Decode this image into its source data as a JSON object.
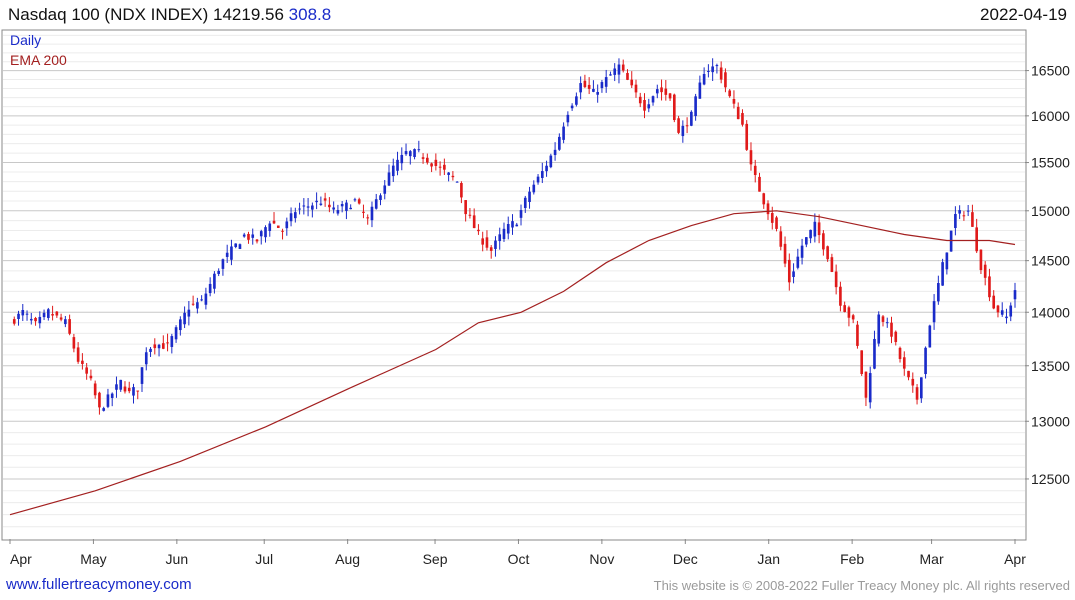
{
  "header": {
    "title": "Nasdaq 100 (NDX INDEX) 14219.56",
    "change": "308.8",
    "date": "2022-04-19"
  },
  "legend": {
    "daily": "Daily",
    "ema": "EMA 200"
  },
  "footer": {
    "link": "www.fullertreacymoney.com",
    "copyright": "This website is © 2008-2022 Fuller Treacy Money plc. All rights reserved"
  },
  "colors": {
    "up": "#1a2bc9",
    "down": "#e01a1a",
    "ema": "#a32020",
    "grid": "#dcdcdc"
  },
  "chart_data": {
    "type": "candlestick",
    "title": "Nasdaq 100 (NDX INDEX) 14219.56",
    "y_ticks": [
      12500,
      13000,
      13500,
      14000,
      14500,
      15000,
      15500,
      16000,
      16500
    ],
    "x_ticks": [
      "Apr",
      "May",
      "Jun",
      "Jul",
      "Aug",
      "Sep",
      "Oct",
      "Nov",
      "Dec",
      "Jan",
      "Feb",
      "Mar",
      "Apr"
    ],
    "ylim": [
      12150,
      16950
    ],
    "grid": true,
    "legend_position": "top-left",
    "series": [
      {
        "name": "Daily",
        "type": "candlestick",
        "points": [
          [
            0,
            13900
          ],
          [
            3,
            14000
          ],
          [
            6,
            13880
          ],
          [
            9,
            14000
          ],
          [
            13,
            13900
          ],
          [
            16,
            13550
          ],
          [
            19,
            13350
          ],
          [
            21,
            13100
          ],
          [
            23,
            13200
          ],
          [
            26,
            13350
          ],
          [
            28,
            13250
          ],
          [
            30,
            13300
          ],
          [
            32,
            13650
          ],
          [
            34,
            13700
          ],
          [
            37,
            13680
          ],
          [
            40,
            13900
          ],
          [
            42,
            14050
          ],
          [
            45,
            14100
          ],
          [
            48,
            14350
          ],
          [
            50,
            14500
          ],
          [
            52,
            14600
          ],
          [
            55,
            14750
          ],
          [
            58,
            14700
          ],
          [
            61,
            14900
          ],
          [
            64,
            14800
          ],
          [
            67,
            15000
          ],
          [
            70,
            15050
          ],
          [
            73,
            15100
          ],
          [
            76,
            15000
          ],
          [
            79,
            15050
          ],
          [
            81,
            15100
          ],
          [
            84,
            14900
          ],
          [
            87,
            15200
          ],
          [
            90,
            15450
          ],
          [
            93,
            15600
          ],
          [
            96,
            15600
          ],
          [
            99,
            15500
          ],
          [
            102,
            15400
          ],
          [
            105,
            15300
          ],
          [
            107,
            15000
          ],
          [
            110,
            14750
          ],
          [
            113,
            14600
          ],
          [
            116,
            14800
          ],
          [
            119,
            14900
          ],
          [
            122,
            15200
          ],
          [
            125,
            15400
          ],
          [
            128,
            15650
          ],
          [
            131,
            16050
          ],
          [
            134,
            16350
          ],
          [
            137,
            16250
          ],
          [
            140,
            16400
          ],
          [
            143,
            16550
          ],
          [
            146,
            16300
          ],
          [
            149,
            16100
          ],
          [
            152,
            16300
          ],
          [
            155,
            16200
          ],
          [
            157,
            15800
          ],
          [
            160,
            16000
          ],
          [
            163,
            16500
          ],
          [
            166,
            16550
          ],
          [
            169,
            16200
          ],
          [
            172,
            15900
          ],
          [
            174,
            15450
          ],
          [
            177,
            15100
          ],
          [
            180,
            14800
          ],
          [
            183,
            14300
          ],
          [
            186,
            14650
          ],
          [
            189,
            14850
          ],
          [
            192,
            14550
          ],
          [
            195,
            14100
          ],
          [
            198,
            13900
          ],
          [
            201,
            13200
          ],
          [
            204,
            14000
          ],
          [
            207,
            13800
          ],
          [
            210,
            13450
          ],
          [
            213,
            13200
          ],
          [
            216,
            13900
          ],
          [
            219,
            14450
          ],
          [
            222,
            14950
          ],
          [
            225,
            15000
          ],
          [
            228,
            14450
          ],
          [
            231,
            14050
          ],
          [
            234,
            13950
          ],
          [
            236,
            14219.56
          ]
        ]
      },
      {
        "name": "EMA 200",
        "type": "line",
        "points": [
          [
            0,
            12200
          ],
          [
            20,
            12400
          ],
          [
            40,
            12650
          ],
          [
            60,
            12950
          ],
          [
            80,
            13300
          ],
          [
            100,
            13650
          ],
          [
            110,
            13900
          ],
          [
            120,
            14000
          ],
          [
            130,
            14200
          ],
          [
            140,
            14480
          ],
          [
            150,
            14700
          ],
          [
            160,
            14850
          ],
          [
            170,
            14970
          ],
          [
            180,
            15000
          ],
          [
            190,
            14940
          ],
          [
            200,
            14850
          ],
          [
            210,
            14760
          ],
          [
            220,
            14700
          ],
          [
            230,
            14700
          ],
          [
            236,
            14660
          ]
        ]
      }
    ]
  }
}
